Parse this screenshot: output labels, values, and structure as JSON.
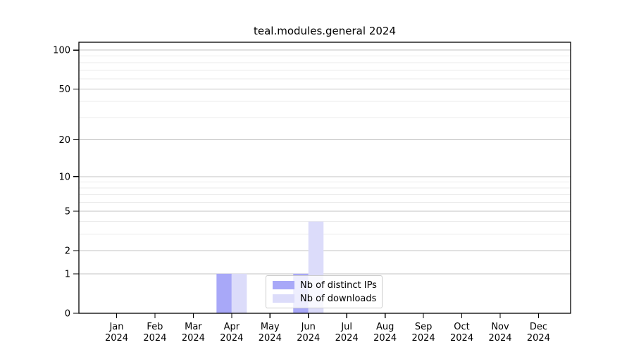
{
  "chart_data": {
    "type": "bar",
    "title": "teal.modules.general 2024",
    "categories": [
      "Jan",
      "Feb",
      "Mar",
      "Apr",
      "May",
      "Jun",
      "Jul",
      "Aug",
      "Sep",
      "Oct",
      "Nov",
      "Dec"
    ],
    "x_year_label": "2024",
    "series": [
      {
        "name": "Nb of distinct IPs",
        "color": "#a8a8f8",
        "values": [
          0,
          0,
          0,
          1,
          0,
          1,
          0,
          0,
          0,
          0,
          0,
          0
        ]
      },
      {
        "name": "Nb of downloads",
        "color": "#dcdcfa",
        "values": [
          0,
          0,
          0,
          1,
          0,
          4,
          0,
          0,
          0,
          0,
          0,
          0
        ]
      }
    ],
    "yscale": "log1p",
    "ylim": [
      0,
      115
    ],
    "yticks": [
      0,
      1,
      2,
      5,
      10,
      20,
      50,
      100
    ],
    "minor_yticks": [
      3,
      4,
      6,
      7,
      8,
      9,
      30,
      40,
      60,
      70,
      80,
      90
    ],
    "grid": true,
    "legend_position": "lower-center"
  },
  "colors": {
    "background": "#ffffff",
    "major_grid": "#c3c3c3",
    "minor_grid": "#ebebeb",
    "axis": "#000000",
    "text": "#000000",
    "legend_border": "#cccccc"
  }
}
